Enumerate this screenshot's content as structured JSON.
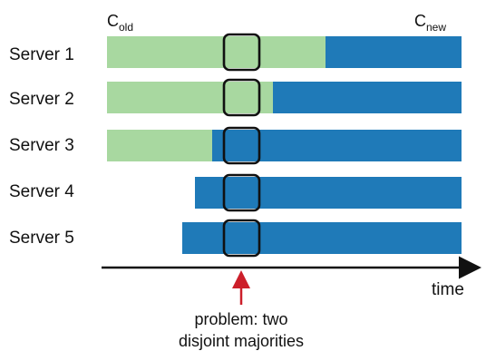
{
  "config_labels": {
    "old": {
      "base": "C",
      "sub": "old"
    },
    "new": {
      "base": "C",
      "sub": "new"
    }
  },
  "servers": [
    {
      "name": "Server 1"
    },
    {
      "name": "Server 2"
    },
    {
      "name": "Server 3"
    },
    {
      "name": "Server 4"
    },
    {
      "name": "Server 5"
    }
  ],
  "axis": {
    "label": "time"
  },
  "annotation": {
    "line1": "problem: two",
    "line2": "disjoint majorities"
  },
  "colors": {
    "old_config": "#a8d8a0",
    "new_config": "#1f7ab8",
    "highlight_box": "#111111",
    "arrow": "#cc1f2a",
    "axis": "#111111"
  }
}
